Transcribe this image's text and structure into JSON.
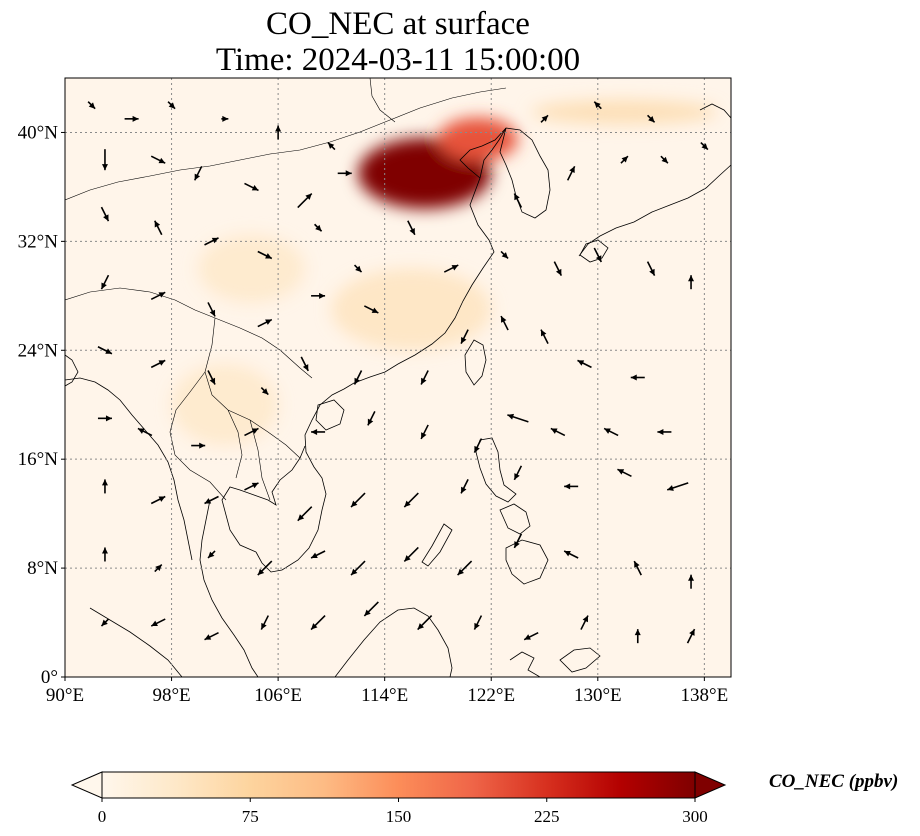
{
  "title": {
    "line1": "CO_NEC at surface",
    "line2": "Time: 2024-03-11 15:00:00"
  },
  "map": {
    "projection": "PlateCarree",
    "lon_range": [
      90,
      140
    ],
    "lat_range": [
      0,
      44
    ],
    "gridlines": "dotted",
    "x_ticks": [
      {
        "lon": 90,
        "label": "90°E"
      },
      {
        "lon": 98,
        "label": "98°E"
      },
      {
        "lon": 106,
        "label": "106°E"
      },
      {
        "lon": 114,
        "label": "114°E"
      },
      {
        "lon": 122,
        "label": "122°E"
      },
      {
        "lon": 130,
        "label": "130°E"
      },
      {
        "lon": 138,
        "label": "138°E"
      }
    ],
    "y_ticks": [
      {
        "lat": 0,
        "label": "0°"
      },
      {
        "lat": 8,
        "label": "8°N"
      },
      {
        "lat": 16,
        "label": "16°N"
      },
      {
        "lat": 24,
        "label": "24°N"
      },
      {
        "lat": 32,
        "label": "32°N"
      },
      {
        "lat": 40,
        "label": "40°N"
      }
    ],
    "field": {
      "variable": "CO_NEC",
      "level": "surface",
      "background_value": 10,
      "features": [
        {
          "name": "North China Plain plume",
          "lon": 117,
          "lat": 37,
          "rx": 5,
          "ry": 2.6,
          "value": 320
        },
        {
          "name": "Bohai plume edge",
          "lon": 121,
          "lat": 39.5,
          "rx": 3,
          "ry": 1.6,
          "value": 200
        },
        {
          "name": "Outflow streak to Sea of Japan",
          "lon": 132,
          "lat": 41.5,
          "rx": 7,
          "ry": 0.9,
          "value": 60
        },
        {
          "name": "South China haze",
          "lon": 116,
          "lat": 27,
          "rx": 6,
          "ry": 3,
          "value": 45
        },
        {
          "name": "Sichuan Basin haze",
          "lon": 104,
          "lat": 30,
          "rx": 4,
          "ry": 2.5,
          "value": 35
        },
        {
          "name": "Indochina haze",
          "lon": 102,
          "lat": 20,
          "rx": 4,
          "ry": 3,
          "value": 35
        }
      ]
    },
    "wind_vectors": [
      [
        92,
        42,
        1,
        -1
      ],
      [
        95,
        41,
        2,
        0
      ],
      [
        98,
        42,
        1,
        -1
      ],
      [
        102,
        41,
        1,
        0
      ],
      [
        106,
        40,
        0,
        2
      ],
      [
        110,
        39,
        -1,
        1
      ],
      [
        93,
        38,
        0,
        -3
      ],
      [
        97,
        38,
        2,
        -1
      ],
      [
        100,
        37,
        -1,
        -2
      ],
      [
        104,
        36,
        2,
        -1
      ],
      [
        108,
        35,
        2,
        2
      ],
      [
        111,
        37,
        2,
        0
      ],
      [
        93,
        34,
        1,
        -2
      ],
      [
        97,
        33,
        -1,
        2
      ],
      [
        101,
        32,
        2,
        1
      ],
      [
        105,
        31,
        2,
        -1
      ],
      [
        109,
        33,
        1,
        -1
      ],
      [
        112,
        30,
        1,
        -1
      ],
      [
        93,
        29,
        -1,
        -2
      ],
      [
        97,
        28,
        2,
        1
      ],
      [
        101,
        27,
        1,
        -2
      ],
      [
        105,
        26,
        2,
        1
      ],
      [
        109,
        28,
        2,
        0
      ],
      [
        113,
        27,
        2,
        -1
      ],
      [
        93,
        24,
        2,
        -1
      ],
      [
        97,
        23,
        2,
        1
      ],
      [
        101,
        22,
        1,
        -2
      ],
      [
        105,
        21,
        1,
        -1
      ],
      [
        108,
        23,
        1,
        -2
      ],
      [
        112,
        22,
        -1,
        -2
      ],
      [
        117,
        22,
        -1,
        -2
      ],
      [
        120,
        25,
        -1,
        -2
      ],
      [
        123,
        26,
        -1,
        2
      ],
      [
        126,
        25,
        -1,
        2
      ],
      [
        129,
        23,
        -2,
        1
      ],
      [
        133,
        22,
        -2,
        0
      ],
      [
        93,
        19,
        2,
        0
      ],
      [
        96,
        18,
        -2,
        1
      ],
      [
        100,
        17,
        2,
        0
      ],
      [
        104,
        18,
        2,
        1
      ],
      [
        109,
        18,
        -2,
        0
      ],
      [
        113,
        19,
        -1,
        -2
      ],
      [
        117,
        18,
        -1,
        -2
      ],
      [
        121,
        17,
        -1,
        -2
      ],
      [
        124,
        19,
        -3,
        1
      ],
      [
        127,
        18,
        -2,
        1
      ],
      [
        131,
        18,
        -2,
        1
      ],
      [
        135,
        18,
        -2,
        0
      ],
      [
        93,
        14,
        0,
        2
      ],
      [
        97,
        13,
        2,
        1
      ],
      [
        101,
        13,
        -2,
        -1
      ],
      [
        104,
        14,
        2,
        1
      ],
      [
        108,
        12,
        -2,
        -2
      ],
      [
        112,
        13,
        -2,
        -2
      ],
      [
        116,
        13,
        -2,
        -2
      ],
      [
        120,
        14,
        -1,
        -2
      ],
      [
        124,
        15,
        -1,
        -2
      ],
      [
        128,
        14,
        -2,
        0
      ],
      [
        132,
        15,
        -2,
        1
      ],
      [
        136,
        14,
        -3,
        -1
      ],
      [
        93,
        9,
        0,
        2
      ],
      [
        97,
        8,
        1,
        1
      ],
      [
        101,
        9,
        -1,
        -1
      ],
      [
        105,
        8,
        -2,
        -2
      ],
      [
        109,
        9,
        -2,
        -1
      ],
      [
        112,
        8,
        -2,
        -2
      ],
      [
        116,
        9,
        -2,
        -2
      ],
      [
        120,
        8,
        -2,
        -2
      ],
      [
        124,
        10,
        -1,
        -2
      ],
      [
        128,
        9,
        -2,
        1
      ],
      [
        133,
        8,
        -1,
        2
      ],
      [
        137,
        7,
        0,
        2
      ],
      [
        93,
        4,
        -1,
        -1
      ],
      [
        97,
        4,
        -2,
        -1
      ],
      [
        101,
        3,
        -2,
        -1
      ],
      [
        105,
        4,
        -1,
        -2
      ],
      [
        109,
        4,
        -2,
        -2
      ],
      [
        113,
        5,
        -2,
        -2
      ],
      [
        117,
        4,
        -2,
        -2
      ],
      [
        121,
        4,
        -1,
        -2
      ],
      [
        125,
        3,
        -2,
        -1
      ],
      [
        129,
        4,
        1,
        2
      ],
      [
        133,
        3,
        0,
        2
      ],
      [
        137,
        3,
        1,
        2
      ],
      [
        116,
        33,
        1,
        -2
      ],
      [
        119,
        30,
        2,
        1
      ],
      [
        123,
        31,
        1,
        -1
      ],
      [
        127,
        30,
        1,
        -2
      ],
      [
        130,
        31,
        1,
        -2
      ],
      [
        134,
        30,
        1,
        -2
      ],
      [
        137,
        29,
        0,
        2
      ],
      [
        124,
        35,
        -1,
        2
      ],
      [
        128,
        37,
        1,
        2
      ],
      [
        132,
        38,
        1,
        1
      ],
      [
        135,
        38,
        1,
        -1
      ],
      [
        138,
        39,
        1,
        -1
      ],
      [
        126,
        41,
        1,
        1
      ],
      [
        130,
        42,
        -1,
        1
      ],
      [
        134,
        41,
        1,
        -1
      ]
    ]
  },
  "colorbar": {
    "label": "CO_NEC (ppbv)",
    "min": 0,
    "max": 300,
    "extend": "both",
    "colormap": "OrRd",
    "ticks": [
      {
        "value": 0,
        "label": "0"
      },
      {
        "value": 75,
        "label": "75"
      },
      {
        "value": 150,
        "label": "150"
      },
      {
        "value": 225,
        "label": "225"
      },
      {
        "value": 300,
        "label": "300"
      }
    ],
    "stops": [
      "#fff7ec",
      "#fee8c8",
      "#fdd49e",
      "#fdbb84",
      "#fc8d59",
      "#ef6548",
      "#d7301f",
      "#b30000",
      "#7f0000"
    ]
  },
  "colors": {
    "frame": "#000000",
    "gridline": "#8a8a8a",
    "coastline": "#000000",
    "vector": "#000000"
  }
}
